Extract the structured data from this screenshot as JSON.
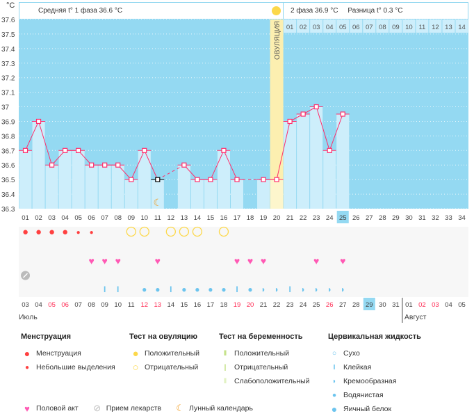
{
  "header": {
    "unit": "°C",
    "phase1": "Средняя t° 1 фаза",
    "phase1_value": "36.6 °C",
    "phase2": "2 фаза",
    "phase2_value": "36.9 °C",
    "diff": "Разница t°",
    "diff_value": "0.3 °C",
    "ovulation_label": "ОВУЛЯЦИЯ"
  },
  "chart_data": {
    "type": "bar",
    "ylim": [
      36.3,
      37.6
    ],
    "yticks": [
      "37.6",
      "37.5",
      "37.4",
      "37.3",
      "37.2",
      "37.1",
      "37",
      "36.9",
      "36.8",
      "36.7",
      "36.6",
      "36.5",
      "36.4",
      "36.3"
    ],
    "cycle_days": [
      "01",
      "02",
      "03",
      "04",
      "05",
      "06",
      "07",
      "08",
      "09",
      "10",
      "11",
      "12",
      "13",
      "14",
      "15",
      "16",
      "17",
      "18",
      "19",
      "20",
      "21",
      "22",
      "23",
      "24",
      "25",
      "26",
      "27",
      "28",
      "29",
      "30",
      "31",
      "32",
      "33",
      "34"
    ],
    "temperatures": [
      36.7,
      36.9,
      36.6,
      36.7,
      36.7,
      36.6,
      36.6,
      36.6,
      36.5,
      36.7,
      36.5,
      null,
      36.6,
      36.5,
      36.5,
      36.7,
      36.5,
      null,
      36.5,
      36.5,
      36.9,
      36.95,
      37.0,
      36.7,
      36.95
    ],
    "excluded_days": [
      11
    ],
    "ovulation_day": 20,
    "current_day": 25,
    "phase2_days": [
      "01",
      "02",
      "03",
      "04",
      "05",
      "06",
      "07",
      "08",
      "09",
      "10",
      "11",
      "12",
      "13",
      "14"
    ],
    "dates": [
      "03",
      "04",
      "05",
      "06",
      "07",
      "08",
      "09",
      "10",
      "11",
      "12",
      "13",
      "14",
      "15",
      "16",
      "17",
      "18",
      "19",
      "20",
      "21",
      "22",
      "23",
      "24",
      "25",
      "26",
      "27",
      "28",
      "29",
      "30",
      "31",
      "01",
      "02",
      "03",
      "04",
      "05"
    ],
    "weekend_dates_idx": [
      2,
      3,
      9,
      10,
      16,
      17,
      23,
      30,
      31
    ],
    "months": [
      "Июль",
      "Август"
    ],
    "menstruation": {
      "1": "heavy",
      "2": "heavy",
      "3": "heavy",
      "4": "heavy",
      "5": "light",
      "6": "light"
    },
    "ovulation_test": {
      "9": "neg",
      "10": "neg",
      "12": "neg",
      "13": "neg",
      "14": "neg",
      "16": "neg"
    },
    "sex": [
      6,
      7,
      8,
      11,
      17,
      18,
      19,
      23,
      25
    ],
    "medicine": [
      1
    ],
    "moon": [
      11
    ],
    "fluid": {
      "7": "sticky",
      "8": "sticky",
      "10": "watery",
      "11": "watery",
      "12": "sticky",
      "13": "watery",
      "14": "watery",
      "15": "watery",
      "16": "watery",
      "17": "sticky",
      "18": "watery",
      "19": "creamy",
      "20": "creamy",
      "21": "sticky",
      "22": "creamy",
      "23": "creamy",
      "24": "creamy",
      "25": "creamy"
    }
  },
  "legend": {
    "menstruation": {
      "title": "Менструация",
      "items": [
        "Менструация",
        "Небольшие выделения"
      ]
    },
    "ovulation": {
      "title": "Тест на овуляцию",
      "items": [
        "Положительный",
        "Отрицательный"
      ]
    },
    "pregnancy": {
      "title": "Тест на беременность",
      "items": [
        "Положительный",
        "Отрицательный",
        "Слабоположительный"
      ]
    },
    "fluid": {
      "title": "Цервикальная жидкость",
      "items": [
        "Сухо",
        "Клейкая",
        "Кремообразная",
        "Водянистая",
        "Яичный белок"
      ]
    },
    "other": [
      "Половой акт",
      "Прием лекарств",
      "Лунный календарь"
    ]
  },
  "colors": {
    "bg": "#94d9f2",
    "bar": "#cdeefb",
    "line": "#ff2d6b",
    "ovulation": "#fcefb0",
    "red": "#ff4040",
    "pink": "#ff59b4",
    "fluid": "#6cc4ee"
  }
}
